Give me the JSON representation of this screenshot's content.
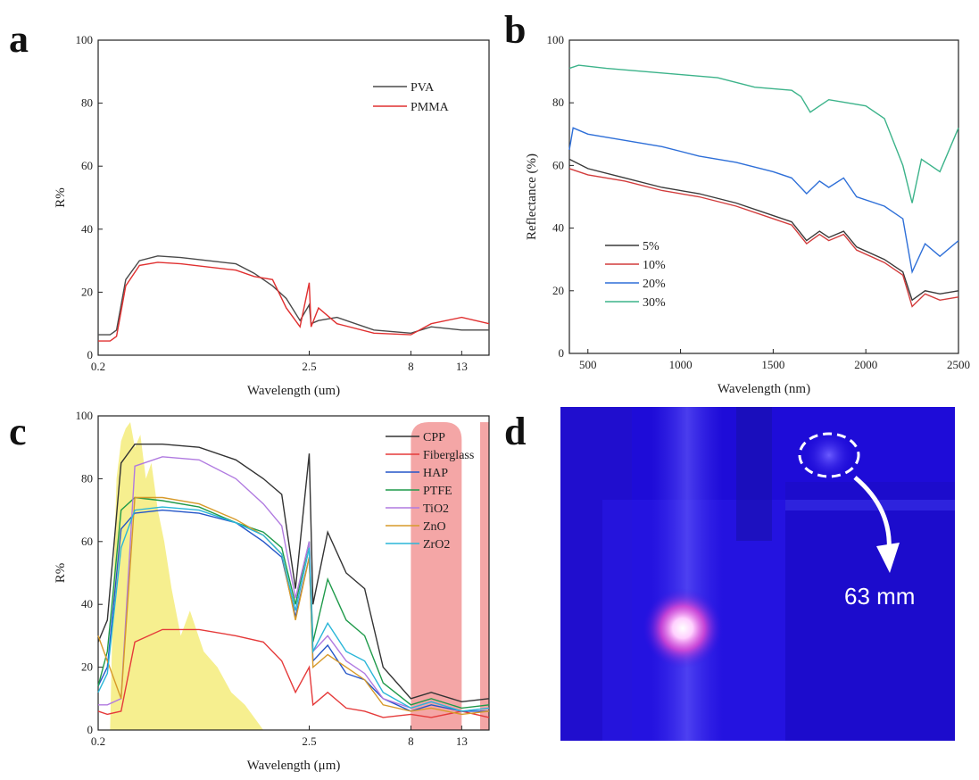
{
  "panels": {
    "a": "a",
    "b": "b",
    "c": "c",
    "d": "d"
  },
  "chart_data": [
    {
      "panel": "a",
      "type": "line",
      "xlabel": "Wavelength (um)",
      "ylabel": "R%",
      "xscale": "categorical-positional",
      "xticks": [
        "0.2",
        "2.5",
        "8",
        "13"
      ],
      "ylim": [
        0,
        100
      ],
      "yticks": [
        "0",
        "20",
        "40",
        "60",
        "80",
        "100"
      ],
      "legend_position": "top-right",
      "series": [
        {
          "name": "PVA",
          "color": "#4a4a4a",
          "x": [
            0.2,
            0.33,
            0.4,
            0.5,
            0.65,
            0.85,
            1.1,
            1.4,
            1.7,
            1.9,
            2.1,
            2.25,
            2.4,
            2.5,
            2.6,
            3.0,
            4.0,
            6.0,
            8.0,
            10.0,
            13.0,
            15.0
          ],
          "y": [
            6.5,
            6.5,
            8,
            24,
            30,
            31.5,
            31,
            30,
            29,
            26,
            22,
            18,
            11,
            16,
            10,
            11,
            12,
            8,
            7,
            9,
            8,
            8
          ]
        },
        {
          "name": "PMMA",
          "color": "#e03030",
          "x": [
            0.2,
            0.33,
            0.4,
            0.5,
            0.65,
            0.85,
            1.1,
            1.4,
            1.7,
            1.9,
            2.1,
            2.25,
            2.4,
            2.5,
            2.6,
            3.0,
            4.0,
            6.0,
            8.0,
            10.0,
            13.0,
            15.0
          ],
          "y": [
            4.5,
            4.5,
            6,
            22,
            28.5,
            29.5,
            29,
            28,
            27,
            25,
            24,
            15,
            9,
            23,
            9,
            15,
            10,
            7,
            6.5,
            10,
            12,
            10
          ]
        }
      ]
    },
    {
      "panel": "b",
      "type": "line",
      "xlabel": "Wavelength (nm)",
      "ylabel": "Reflectance (%)",
      "xlim": [
        400,
        2500
      ],
      "xticks": [
        "500",
        "1000",
        "1500",
        "2000",
        "2500"
      ],
      "ylim": [
        0,
        100
      ],
      "yticks": [
        "0",
        "20",
        "40",
        "60",
        "80",
        "100"
      ],
      "legend_position": "bottom-left",
      "series": [
        {
          "name": "5%",
          "color": "#3a3a3a",
          "x": [
            400,
            500,
            700,
            900,
            1100,
            1300,
            1500,
            1600,
            1680,
            1750,
            1800,
            1880,
            1950,
            2100,
            2200,
            2250,
            2320,
            2400,
            2500
          ],
          "y": [
            62,
            59,
            56,
            53,
            51,
            48,
            44,
            42,
            36,
            39,
            37,
            39,
            34,
            30,
            26,
            17,
            20,
            19,
            20
          ]
        },
        {
          "name": "10%",
          "color": "#d23c3c",
          "x": [
            400,
            500,
            700,
            900,
            1100,
            1300,
            1500,
            1600,
            1680,
            1750,
            1800,
            1880,
            1950,
            2100,
            2200,
            2250,
            2320,
            2400,
            2500
          ],
          "y": [
            59,
            57,
            55,
            52,
            50,
            47,
            43,
            41,
            35,
            38,
            36,
            38,
            33,
            29,
            25,
            15,
            19,
            17,
            18
          ]
        },
        {
          "name": "20%",
          "color": "#2e6fd8",
          "x": [
            400,
            420,
            500,
            700,
            900,
            1100,
            1300,
            1500,
            1600,
            1680,
            1750,
            1800,
            1880,
            1950,
            2100,
            2200,
            2250,
            2320,
            2400,
            2500
          ],
          "y": [
            65,
            72,
            70,
            68,
            66,
            63,
            61,
            58,
            56,
            51,
            55,
            53,
            56,
            50,
            47,
            43,
            26,
            35,
            31,
            36
          ]
        },
        {
          "name": "30%",
          "color": "#3cb38a",
          "x": [
            400,
            450,
            600,
            800,
            1000,
            1200,
            1400,
            1600,
            1650,
            1700,
            1750,
            1800,
            1900,
            2000,
            2100,
            2200,
            2250,
            2300,
            2400,
            2500
          ],
          "y": [
            91,
            92,
            91,
            90,
            89,
            88,
            85,
            84,
            82,
            77,
            79,
            81,
            80,
            79,
            75,
            60,
            48,
            62,
            58,
            72
          ]
        }
      ]
    },
    {
      "panel": "c",
      "type": "line",
      "xlabel": "Wavelength (μm)",
      "ylabel": "R%",
      "xscale": "categorical-positional",
      "xticks": [
        "0.2",
        "2.5",
        "8",
        "13"
      ],
      "ylim": [
        0,
        100
      ],
      "yticks": [
        "0",
        "20",
        "40",
        "60",
        "80",
        "100"
      ],
      "legend_position": "top-right",
      "shaded_bands": [
        {
          "label": "solar spectrum",
          "color": "#f3ea6a"
        },
        {
          "label": "atmospheric window",
          "color": "#ef8080"
        }
      ],
      "series": [
        {
          "name": "CPP",
          "color": "#333333",
          "x": [
            0.2,
            0.3,
            0.45,
            0.6,
            0.9,
            1.3,
            1.7,
            2.0,
            2.2,
            2.35,
            2.5,
            2.7,
            3.5,
            4.5,
            5.5,
            6.5,
            8,
            10,
            13,
            15
          ],
          "y": [
            28,
            35,
            85,
            91,
            91,
            90,
            86,
            80,
            75,
            45,
            88,
            40,
            63,
            50,
            45,
            20,
            10,
            12,
            9,
            10
          ]
        },
        {
          "name": "Fiberglass",
          "color": "#e53a3a",
          "x": [
            0.2,
            0.3,
            0.45,
            0.6,
            0.9,
            1.3,
            1.7,
            2.0,
            2.2,
            2.35,
            2.5,
            2.7,
            3.5,
            4.5,
            5.5,
            6.5,
            8,
            10,
            13,
            15
          ],
          "y": [
            6,
            5,
            6,
            28,
            32,
            32,
            30,
            28,
            22,
            12,
            20,
            8,
            12,
            7,
            6,
            4,
            5,
            4,
            6,
            4
          ]
        },
        {
          "name": "HAP",
          "color": "#2455c8",
          "x": [
            0.2,
            0.3,
            0.45,
            0.6,
            0.9,
            1.3,
            1.7,
            2.0,
            2.2,
            2.35,
            2.5,
            2.7,
            3.5,
            4.5,
            5.5,
            6.5,
            8,
            10,
            13,
            15
          ],
          "y": [
            14,
            20,
            64,
            69,
            70,
            69,
            66,
            60,
            55,
            36,
            55,
            22,
            27,
            18,
            16,
            10,
            6,
            8,
            6,
            6
          ]
        },
        {
          "name": "PTFE",
          "color": "#1f9a4a",
          "x": [
            0.2,
            0.3,
            0.45,
            0.6,
            0.9,
            1.3,
            1.7,
            2.0,
            2.2,
            2.35,
            2.5,
            2.7,
            3.5,
            4.5,
            5.5,
            6.5,
            8,
            10,
            13,
            15
          ],
          "y": [
            14,
            25,
            70,
            74,
            73,
            71,
            66,
            63,
            58,
            40,
            60,
            28,
            48,
            35,
            30,
            15,
            8,
            10,
            7,
            8
          ]
        },
        {
          "name": "TiO2",
          "color": "#b07ae0",
          "x": [
            0.2,
            0.3,
            0.45,
            0.6,
            0.9,
            1.3,
            1.7,
            2.0,
            2.2,
            2.35,
            2.5,
            2.7,
            3.5,
            4.5,
            5.5,
            6.5,
            8,
            10,
            13,
            15
          ],
          "y": [
            8,
            8,
            10,
            84,
            87,
            86,
            80,
            72,
            65,
            42,
            60,
            25,
            30,
            22,
            18,
            10,
            7,
            9,
            6,
            7
          ]
        },
        {
          "name": "ZnO",
          "color": "#d79a2a",
          "x": [
            0.2,
            0.3,
            0.45,
            0.6,
            0.9,
            1.3,
            1.7,
            2.0,
            2.2,
            2.35,
            2.5,
            2.7,
            3.5,
            4.5,
            5.5,
            6.5,
            8,
            10,
            13,
            15
          ],
          "y": [
            30,
            22,
            10,
            74,
            74,
            72,
            67,
            62,
            56,
            35,
            55,
            20,
            24,
            20,
            16,
            8,
            6,
            7,
            5,
            6
          ]
        },
        {
          "name": "ZrO2",
          "color": "#2ab6d8",
          "x": [
            0.2,
            0.3,
            0.45,
            0.6,
            0.9,
            1.3,
            1.7,
            2.0,
            2.2,
            2.35,
            2.5,
            2.7,
            3.5,
            4.5,
            5.5,
            6.5,
            8,
            10,
            13,
            15
          ],
          "y": [
            12,
            18,
            58,
            70,
            71,
            70,
            66,
            62,
            56,
            38,
            58,
            25,
            34,
            25,
            22,
            12,
            7,
            9,
            6,
            7
          ]
        }
      ]
    }
  ],
  "photo": {
    "panel": "d",
    "label": "63 mm",
    "background_color": "#1a0ad6"
  }
}
